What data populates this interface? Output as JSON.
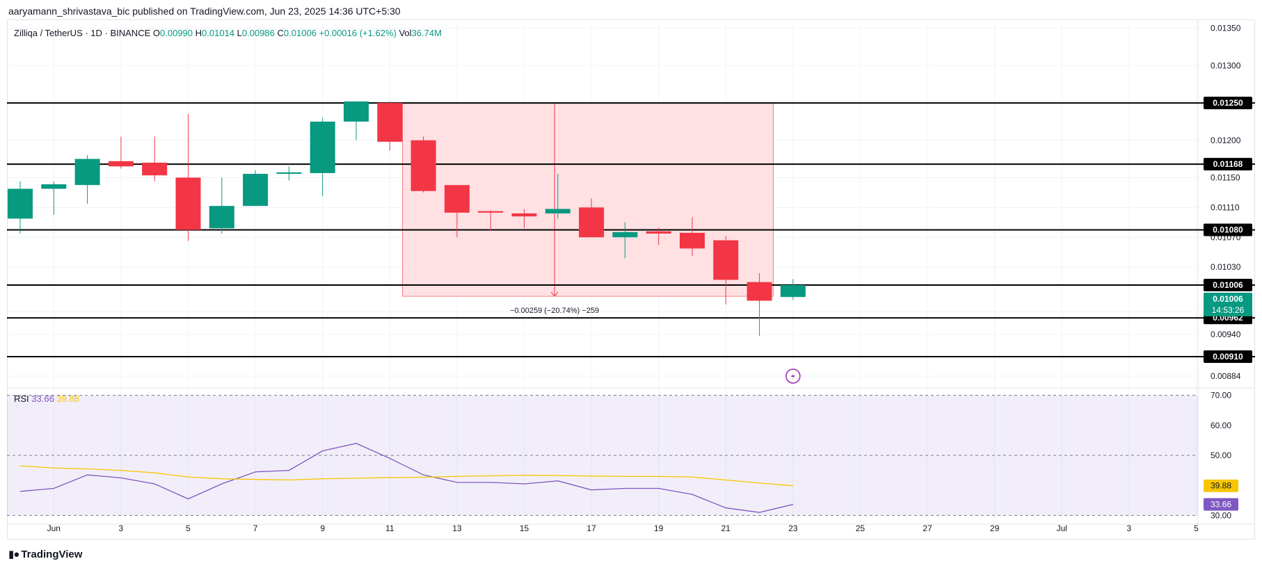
{
  "header": {
    "published_line": "aaryamann_shrivastava_bic published on TradingView.com, Jun 23, 2025 14:36 UTC+5:30"
  },
  "legend": {
    "symbol": "Zilliqa / TetherUS · 1D · BINANCE",
    "o_label": "O",
    "o_value": "0.00990",
    "h_label": "H",
    "h_value": "0.01014",
    "l_label": "L",
    "l_value": "0.00986",
    "c_label": "C",
    "c_value": "0.01006",
    "change": "+0.00016 (+1.62%)",
    "vol_label": "Vol",
    "vol_value": "36.74M"
  },
  "rsi_legend": {
    "label": "RSI",
    "rsi_value": "33.66",
    "ma_value": "39.88"
  },
  "footer": {
    "brand": "TradingView",
    "brand_icon": "tradingview-logo-icon"
  },
  "colors": {
    "up": "#089981",
    "down": "#f23645",
    "rsi": "#7e57c2",
    "rsi_ma": "#f7c600",
    "measure_fill": "#ffe0e3",
    "measure_line": "#f23645",
    "level": "#000000"
  },
  "chart_data": [
    {
      "type": "candlestick",
      "symbol": "Zilliqa / TetherUS",
      "interval": "1D",
      "exchange": "BINANCE",
      "x_start": "2025-05-31",
      "dates": [
        "2025-05-31",
        "2025-06-01",
        "2025-06-02",
        "2025-06-03",
        "2025-06-04",
        "2025-06-05",
        "2025-06-06",
        "2025-06-07",
        "2025-06-08",
        "2025-06-09",
        "2025-06-10",
        "2025-06-11",
        "2025-06-12",
        "2025-06-13",
        "2025-06-14",
        "2025-06-15",
        "2025-06-16",
        "2025-06-17",
        "2025-06-18",
        "2025-06-19",
        "2025-06-20",
        "2025-06-21",
        "2025-06-22",
        "2025-06-23"
      ],
      "open": [
        0.01095,
        0.01135,
        0.0114,
        0.01172,
        0.0117,
        0.0115,
        0.01082,
        0.01112,
        0.01155,
        0.01156,
        0.01225,
        0.0125,
        0.012,
        0.0114,
        0.01105,
        0.01102,
        0.01102,
        0.0111,
        0.0107,
        0.01078,
        0.01076,
        0.01066,
        0.0101,
        0.0099
      ],
      "high": [
        0.01145,
        0.01145,
        0.0118,
        0.01205,
        0.01205,
        0.01235,
        0.0115,
        0.0116,
        0.01165,
        0.0123,
        0.01252,
        0.01252,
        0.01205,
        0.0114,
        0.01106,
        0.01108,
        0.01155,
        0.01122,
        0.0109,
        0.01083,
        0.01097,
        0.01072,
        0.01022,
        0.01014
      ],
      "low": [
        0.01075,
        0.011,
        0.01115,
        0.01162,
        0.01145,
        0.01065,
        0.01075,
        0.01112,
        0.01146,
        0.01125,
        0.012,
        0.01186,
        0.0113,
        0.0107,
        0.01079,
        0.01082,
        0.01095,
        0.01072,
        0.01042,
        0.0106,
        0.01045,
        0.0098,
        0.00938,
        0.00986
      ],
      "close": [
        0.01135,
        0.01141,
        0.01175,
        0.01165,
        0.01153,
        0.0108,
        0.01112,
        0.01155,
        0.01157,
        0.01225,
        0.01252,
        0.01198,
        0.01132,
        0.01103,
        0.01103,
        0.01098,
        0.01108,
        0.0107,
        0.01077,
        0.01075,
        0.01055,
        0.01013,
        0.00985,
        0.01006
      ],
      "x_ticks": [
        "Jun",
        "3",
        "5",
        "7",
        "9",
        "11",
        "13",
        "15",
        "17",
        "19",
        "21",
        "23",
        "25",
        "27",
        "29",
        "Jul",
        "3",
        "5"
      ],
      "x_tick_dates": [
        "2025-06-01",
        "2025-06-03",
        "2025-06-05",
        "2025-06-07",
        "2025-06-09",
        "2025-06-11",
        "2025-06-13",
        "2025-06-15",
        "2025-06-17",
        "2025-06-19",
        "2025-06-21",
        "2025-06-23",
        "2025-06-25",
        "2025-06-27",
        "2025-06-29",
        "2025-07-01",
        "2025-07-03",
        "2025-07-05"
      ],
      "y_ticks": [
        "0.01350",
        "0.01300",
        "0.01200",
        "0.01150",
        "0.01110",
        "0.01070",
        "0.01030",
        "0.00970",
        "0.00940",
        "0.00884"
      ],
      "ylim": [
        0.0087,
        0.0136
      ],
      "horizontal_levels": [
        "0.01250",
        "0.01168",
        "0.01080",
        "0.01006",
        "0.00962",
        "0.00910"
      ],
      "current_price_label": "0.01006",
      "countdown": "14:53:26",
      "measurement": {
        "x_start": "2025-06-12",
        "x_end": "2025-06-22",
        "y_top": 0.0125,
        "y_bottom": 0.00991,
        "label": "−0.00259 (−20.74%) −259"
      },
      "grid": true
    },
    {
      "type": "line",
      "title": "RSI",
      "dates": [
        "2025-05-31",
        "2025-06-01",
        "2025-06-02",
        "2025-06-03",
        "2025-06-04",
        "2025-06-05",
        "2025-06-06",
        "2025-06-07",
        "2025-06-08",
        "2025-06-09",
        "2025-06-10",
        "2025-06-11",
        "2025-06-12",
        "2025-06-13",
        "2025-06-14",
        "2025-06-15",
        "2025-06-16",
        "2025-06-17",
        "2025-06-18",
        "2025-06-19",
        "2025-06-20",
        "2025-06-21",
        "2025-06-22",
        "2025-06-23"
      ],
      "series": [
        {
          "name": "RSI",
          "values": [
            38.0,
            39.0,
            43.5,
            42.5,
            40.5,
            35.5,
            40.5,
            44.5,
            45.0,
            51.5,
            54.0,
            49.0,
            43.5,
            41.0,
            41.0,
            40.5,
            41.5,
            38.5,
            39.0,
            39.0,
            37.0,
            32.5,
            31.0,
            33.66
          ]
        },
        {
          "name": "RSI MA",
          "values": [
            46.5,
            45.8,
            45.5,
            45.0,
            44.2,
            42.8,
            42.2,
            42.0,
            41.8,
            42.2,
            42.4,
            42.6,
            42.7,
            43.0,
            43.2,
            43.4,
            43.3,
            43.1,
            43.0,
            43.0,
            42.8,
            41.8,
            40.8,
            39.88
          ]
        }
      ],
      "y_ticks": [
        "70.00",
        "60.00",
        "50.00",
        "30.00"
      ],
      "ylim": [
        28,
        72
      ],
      "band": [
        30,
        70
      ],
      "value_labels": [
        "39.88",
        "33.66"
      ]
    }
  ]
}
